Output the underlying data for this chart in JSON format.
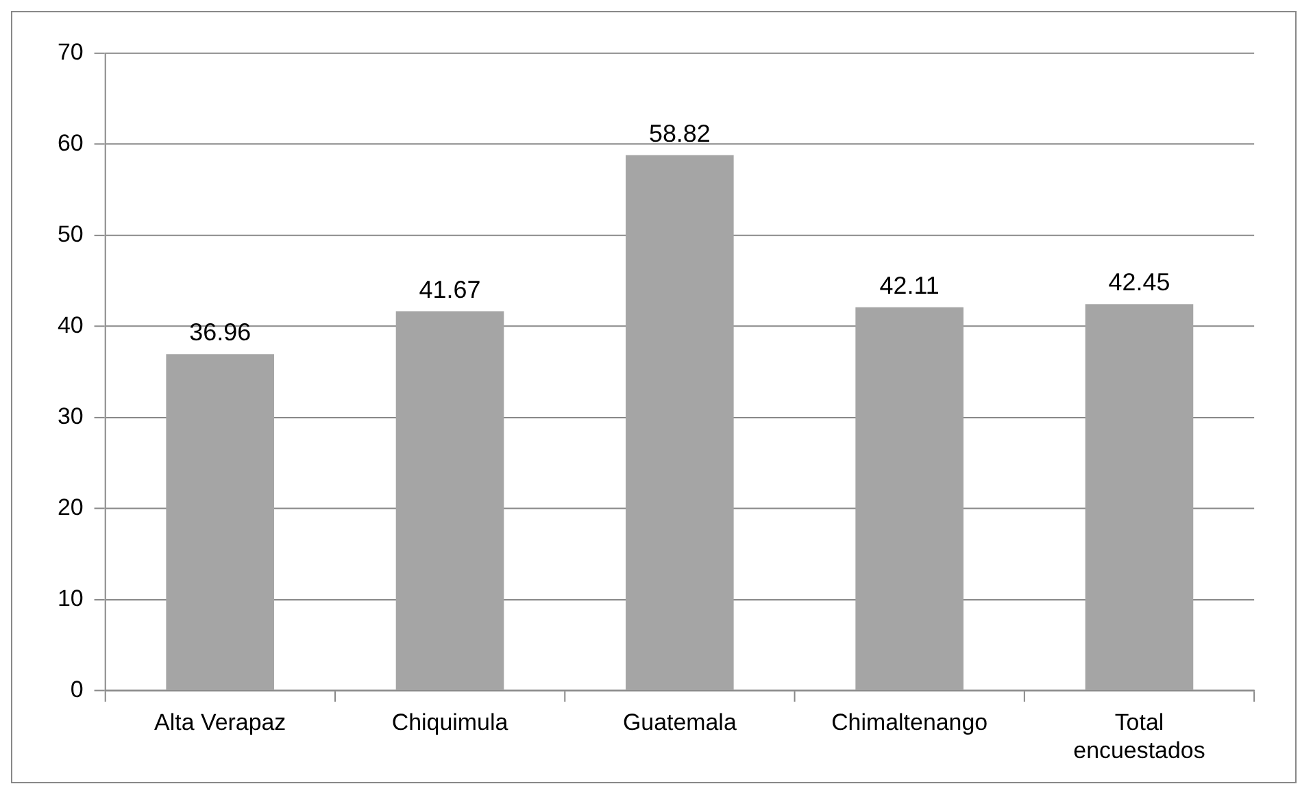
{
  "chart_data": {
    "type": "bar",
    "categories": [
      "Alta Verapaz",
      "Chiquimula",
      "Guatemala",
      "Chimaltenango",
      "Total encuestados"
    ],
    "values": [
      36.96,
      41.67,
      58.82,
      42.11,
      42.45
    ],
    "color": "#a5a5a5",
    "ylim": [
      0,
      70
    ],
    "yticks": [
      0,
      10,
      20,
      30,
      40,
      50,
      60,
      70
    ],
    "grid": "y",
    "data_labels": true,
    "legend": false
  }
}
